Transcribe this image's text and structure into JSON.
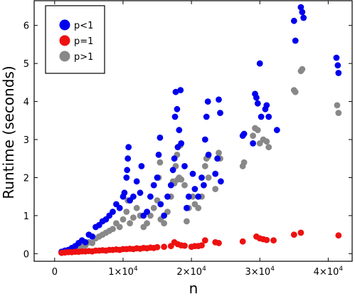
{
  "chart_data": {
    "type": "scatter",
    "xlabel": "n",
    "ylabel": "Runtime (seconds)",
    "xlim": [
      -3000,
      43500
    ],
    "ylim": [
      -0.2,
      6.65
    ],
    "xticks": [
      {
        "value": 0,
        "label": "0"
      },
      {
        "value": 10000,
        "label": "1×10",
        "exp": "4"
      },
      {
        "value": 20000,
        "label": "2×10",
        "exp": "4"
      },
      {
        "value": 30000,
        "label": "3×10",
        "exp": "4"
      },
      {
        "value": 40000,
        "label": "4×10",
        "exp": "4"
      }
    ],
    "yticks": [
      0,
      1,
      2,
      3,
      4,
      5,
      6
    ],
    "grid": false,
    "legend_position": "top-left",
    "series": [
      {
        "name": "p<1",
        "color": "#0000ee",
        "points": [
          [
            1000,
            0.05
          ],
          [
            1500,
            0.08
          ],
          [
            2000,
            0.1
          ],
          [
            2500,
            0.15
          ],
          [
            3000,
            0.2
          ],
          [
            3500,
            0.28
          ],
          [
            4000,
            0.35
          ],
          [
            4500,
            0.3
          ],
          [
            5000,
            0.5
          ],
          [
            5500,
            0.45
          ],
          [
            6000,
            0.7
          ],
          [
            6500,
            0.75
          ],
          [
            7000,
            0.85
          ],
          [
            7500,
            0.9
          ],
          [
            8000,
            1.0
          ],
          [
            8500,
            1.1
          ],
          [
            9000,
            1.3
          ],
          [
            9500,
            1.2
          ],
          [
            10000,
            1.5
          ],
          [
            10200,
            1.6
          ],
          [
            10500,
            2.0
          ],
          [
            10600,
            2.2
          ],
          [
            10700,
            2.5
          ],
          [
            10800,
            2.8
          ],
          [
            11000,
            1.4
          ],
          [
            11500,
            1.5
          ],
          [
            12000,
            1.9
          ],
          [
            12500,
            1.6
          ],
          [
            12700,
            2.3
          ],
          [
            13000,
            1.0
          ],
          [
            13500,
            1.1
          ],
          [
            14000,
            1.5
          ],
          [
            14500,
            1.8
          ],
          [
            15000,
            2.0
          ],
          [
            15200,
            2.6
          ],
          [
            15400,
            3.05
          ],
          [
            15500,
            1.3
          ],
          [
            16000,
            1.0
          ],
          [
            16500,
            1.5
          ],
          [
            17000,
            1.8
          ],
          [
            17300,
            2.2
          ],
          [
            17500,
            2.5
          ],
          [
            17600,
            3.6
          ],
          [
            17700,
            4.25
          ],
          [
            17900,
            3.8
          ],
          [
            18000,
            2.8
          ],
          [
            18200,
            3.25
          ],
          [
            18400,
            4.3
          ],
          [
            18500,
            2.9
          ],
          [
            19000,
            2.3
          ],
          [
            19300,
            1.2
          ],
          [
            19600,
            1.5
          ],
          [
            20200,
            2.1
          ],
          [
            20500,
            1.7
          ],
          [
            21000,
            1.5
          ],
          [
            21500,
            2.0
          ],
          [
            21800,
            1.8
          ],
          [
            22000,
            3.0
          ],
          [
            22200,
            3.6
          ],
          [
            22400,
            4.0
          ],
          [
            22500,
            2.6
          ],
          [
            23500,
            2.1
          ],
          [
            23800,
            2.5
          ],
          [
            24000,
            4.05
          ],
          [
            24200,
            3.7
          ],
          [
            24300,
            1.9
          ],
          [
            27500,
            3.1
          ],
          [
            27700,
            3.15
          ],
          [
            29000,
            2.9
          ],
          [
            29300,
            4.2
          ],
          [
            29500,
            4.1
          ],
          [
            29700,
            3.95
          ],
          [
            30000,
            5.0
          ],
          [
            30200,
            3.6
          ],
          [
            30800,
            3.8
          ],
          [
            31000,
            3.9
          ],
          [
            31300,
            3.6
          ],
          [
            32500,
            3.25
          ],
          [
            35000,
            6.12
          ],
          [
            35200,
            5.6
          ],
          [
            36000,
            6.48
          ],
          [
            36200,
            6.35
          ],
          [
            36400,
            6.2
          ],
          [
            41200,
            5.15
          ],
          [
            41400,
            4.95
          ],
          [
            41500,
            4.75
          ]
        ]
      },
      {
        "name": "p=1",
        "color": "#ee1111",
        "points": [
          [
            1000,
            0.02
          ],
          [
            1500,
            0.03
          ],
          [
            2000,
            0.04
          ],
          [
            2500,
            0.04
          ],
          [
            3000,
            0.05
          ],
          [
            3500,
            0.05
          ],
          [
            4000,
            0.06
          ],
          [
            4500,
            0.06
          ],
          [
            5000,
            0.07
          ],
          [
            5500,
            0.06
          ],
          [
            6000,
            0.08
          ],
          [
            6500,
            0.08
          ],
          [
            7000,
            0.09
          ],
          [
            7500,
            0.08
          ],
          [
            8000,
            0.1
          ],
          [
            8500,
            0.1
          ],
          [
            9000,
            0.11
          ],
          [
            9500,
            0.1
          ],
          [
            10000,
            0.12
          ],
          [
            10500,
            0.12
          ],
          [
            11000,
            0.13
          ],
          [
            11500,
            0.12
          ],
          [
            12000,
            0.14
          ],
          [
            12500,
            0.13
          ],
          [
            13000,
            0.15
          ],
          [
            13500,
            0.14
          ],
          [
            14000,
            0.16
          ],
          [
            14500,
            0.15
          ],
          [
            15000,
            0.17
          ],
          [
            16000,
            0.18
          ],
          [
            17000,
            0.2
          ],
          [
            17500,
            0.3
          ],
          [
            18000,
            0.25
          ],
          [
            18500,
            0.22
          ],
          [
            19000,
            0.21
          ],
          [
            20000,
            0.18
          ],
          [
            20500,
            0.2
          ],
          [
            21000,
            0.2
          ],
          [
            21500,
            0.22
          ],
          [
            22000,
            0.35
          ],
          [
            23500,
            0.3
          ],
          [
            24000,
            0.28
          ],
          [
            27500,
            0.32
          ],
          [
            29500,
            0.45
          ],
          [
            30000,
            0.4
          ],
          [
            30500,
            0.38
          ],
          [
            31000,
            0.36
          ],
          [
            32000,
            0.35
          ],
          [
            35000,
            0.5
          ],
          [
            36000,
            0.55
          ],
          [
            41500,
            0.48
          ]
        ]
      },
      {
        "name": "p>1",
        "color": "#888888",
        "points": [
          [
            1000,
            0.03
          ],
          [
            1500,
            0.05
          ],
          [
            2000,
            0.07
          ],
          [
            2500,
            0.1
          ],
          [
            3000,
            0.12
          ],
          [
            3500,
            0.15
          ],
          [
            4000,
            0.2
          ],
          [
            4500,
            0.22
          ],
          [
            5000,
            0.3
          ],
          [
            5500,
            0.28
          ],
          [
            6000,
            0.4
          ],
          [
            6500,
            0.45
          ],
          [
            7000,
            0.5
          ],
          [
            7500,
            0.55
          ],
          [
            8000,
            0.6
          ],
          [
            8500,
            0.65
          ],
          [
            9000,
            0.8
          ],
          [
            9500,
            0.7
          ],
          [
            10000,
            0.9
          ],
          [
            10500,
            1.1
          ],
          [
            10700,
            1.4
          ],
          [
            11000,
            0.8
          ],
          [
            11500,
            0.95
          ],
          [
            12000,
            1.2
          ],
          [
            12500,
            1.0
          ],
          [
            13000,
            0.7
          ],
          [
            13500,
            0.8
          ],
          [
            14000,
            1.0
          ],
          [
            14500,
            1.2
          ],
          [
            15000,
            1.4
          ],
          [
            15200,
            2.0
          ],
          [
            15400,
            2.4
          ],
          [
            15500,
            0.9
          ],
          [
            16000,
            0.8
          ],
          [
            16500,
            1.1
          ],
          [
            17000,
            1.5
          ],
          [
            17300,
            1.9
          ],
          [
            17500,
            1.85
          ],
          [
            17700,
            2.3
          ],
          [
            17900,
            2.6
          ],
          [
            18000,
            1.95
          ],
          [
            18200,
            2.0
          ],
          [
            18400,
            2.85
          ],
          [
            18500,
            1.95
          ],
          [
            19000,
            1.8
          ],
          [
            19300,
            0.85
          ],
          [
            19600,
            1.2
          ],
          [
            20200,
            1.5
          ],
          [
            20500,
            1.3
          ],
          [
            21000,
            1.2
          ],
          [
            21500,
            1.5
          ],
          [
            22000,
            2.3
          ],
          [
            22200,
            2.5
          ],
          [
            22400,
            2.55
          ],
          [
            22500,
            2.0
          ],
          [
            23500,
            1.7
          ],
          [
            24000,
            2.65
          ],
          [
            24200,
            2.5
          ],
          [
            27500,
            2.3
          ],
          [
            27700,
            2.4
          ],
          [
            29000,
            3.1
          ],
          [
            29300,
            3.3
          ],
          [
            29700,
            3.25
          ],
          [
            30000,
            2.9
          ],
          [
            30500,
            3.0
          ],
          [
            31000,
            2.95
          ],
          [
            31300,
            2.8
          ],
          [
            35000,
            4.3
          ],
          [
            35200,
            4.25
          ],
          [
            36000,
            4.8
          ],
          [
            36200,
            4.85
          ],
          [
            41300,
            3.9
          ],
          [
            41500,
            3.7
          ]
        ]
      }
    ]
  }
}
